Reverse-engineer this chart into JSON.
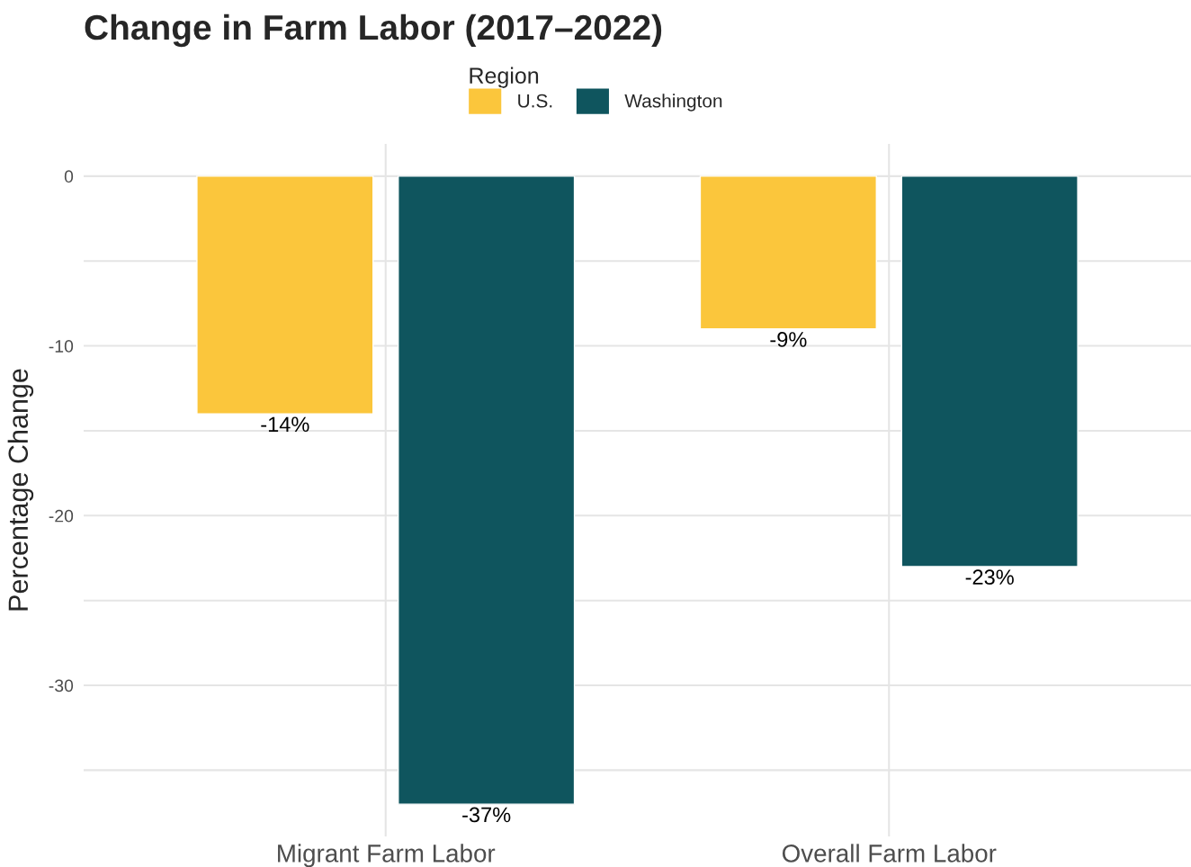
{
  "chart_data": {
    "type": "bar",
    "title": "Change in Farm Labor (2017–2022)",
    "ylabel": "Percentage Change",
    "legend_title": "Region",
    "categories": [
      "Migrant Farm Labor",
      "Overall Farm Labor"
    ],
    "series": [
      {
        "name": "U.S.",
        "color": "#fbc63c",
        "values": [
          -14,
          -9
        ],
        "value_labels": [
          "-14%",
          "-9%"
        ]
      },
      {
        "name": "Washington",
        "color": "#0f555e",
        "values": [
          -37,
          -23
        ],
        "value_labels": [
          "-37%",
          "-23%"
        ]
      }
    ],
    "ylim": [
      -38.9,
      1.9
    ],
    "yticks": [
      {
        "value": -35,
        "label": null
      },
      -30,
      {
        "value": -25,
        "label": null
      },
      -20,
      {
        "value": -15,
        "label": null
      },
      -10,
      {
        "value": -5,
        "label": null
      },
      0
    ],
    "grid": true,
    "legend": "top"
  }
}
